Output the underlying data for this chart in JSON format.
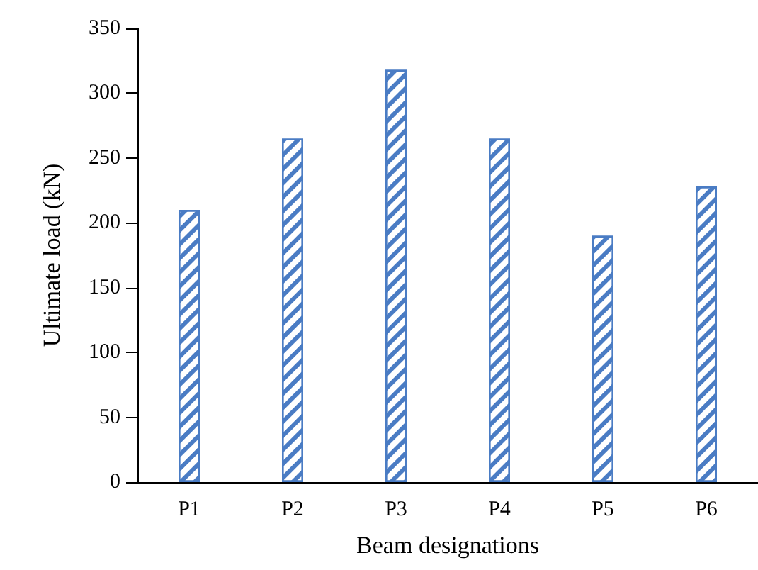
{
  "chart_data": {
    "type": "bar",
    "xlabel": "Beam designations",
    "ylabel": "Ultimate load (kN)",
    "categories": [
      "P1",
      "P2",
      "P3",
      "P4",
      "P5",
      "P6"
    ],
    "values": [
      210,
      265,
      318,
      265,
      190,
      228
    ],
    "color": "#4a7cc4",
    "ylim": [
      0,
      350
    ],
    "yticks": [
      0,
      50,
      100,
      150,
      200,
      250,
      300,
      350
    ],
    "grid": false
  }
}
